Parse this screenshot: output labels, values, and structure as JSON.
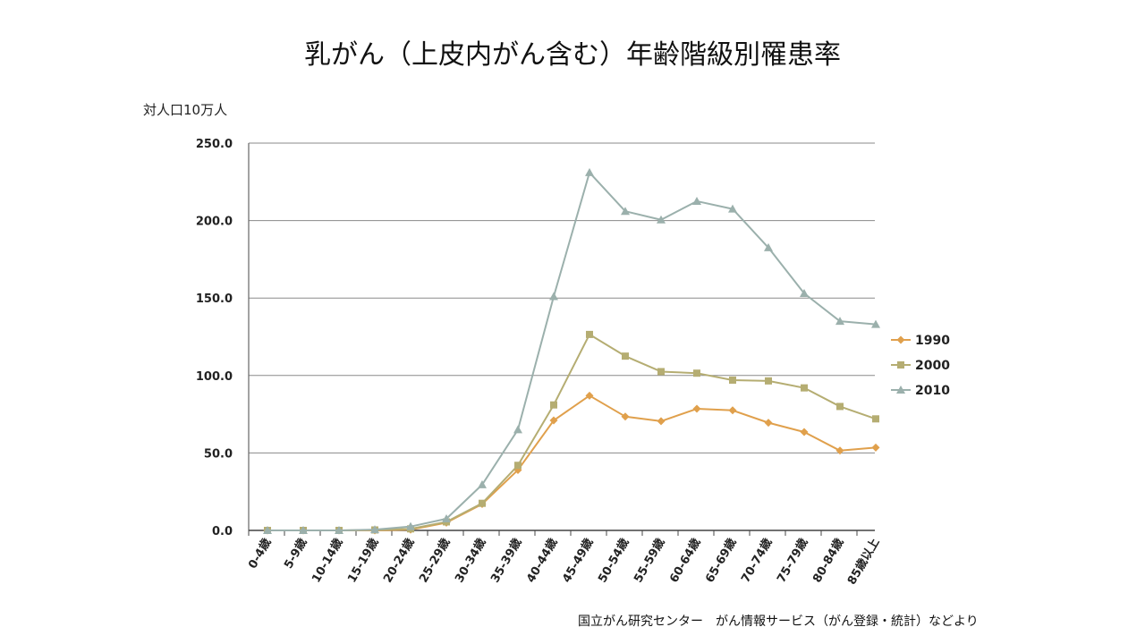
{
  "title": "乳がん（上皮内がん含む）年齢階級別罹患率",
  "unit_label": "対人口10万人",
  "source": "国立がん研究センター　がん情報サービス（がん登録・統計）などより",
  "chart_data": {
    "type": "line",
    "title": "乳がん（上皮内がん含む）年齢階級別罹患率",
    "ylabel": "対人口10万人",
    "xlabel": "",
    "ylim": [
      0,
      250
    ],
    "yticks": [
      "0.0",
      "50.0",
      "100.0",
      "150.0",
      "200.0",
      "250.0"
    ],
    "grid": true,
    "legend_position": "right",
    "categories": [
      "0-4歳",
      "5-9歳",
      "10-14歳",
      "15-19歳",
      "20-24歳",
      "25-29歳",
      "30-34歳",
      "35-39歳",
      "40-44歳",
      "45-49歳",
      "50-54歳",
      "55-59歳",
      "60-64歳",
      "65-69歳",
      "70-74歳",
      "75-79歳",
      "80-84歳",
      "85歳以上"
    ],
    "series": [
      {
        "name": "1990",
        "color": "#E0A04C",
        "marker": "diamond",
        "values": [
          0,
          0,
          0,
          0,
          0.5,
          5,
          17,
          39,
          71,
          87,
          73.5,
          70.5,
          78.5,
          77.5,
          69.5,
          63.5,
          51.5,
          53.5
        ]
      },
      {
        "name": "2000",
        "color": "#B5AD72",
        "marker": "square",
        "values": [
          0,
          0,
          0,
          0.3,
          1,
          5.5,
          17.5,
          42,
          81,
          126.5,
          112.5,
          102.5,
          101.5,
          97,
          96.5,
          92,
          80,
          72
        ]
      },
      {
        "name": "2010",
        "color": "#9BB0AC",
        "marker": "triangle",
        "values": [
          0,
          0,
          0,
          0.5,
          2.5,
          7.5,
          29.5,
          65,
          151,
          231,
          206,
          200.5,
          212.5,
          207.5,
          182.5,
          153,
          135,
          133
        ]
      }
    ]
  }
}
